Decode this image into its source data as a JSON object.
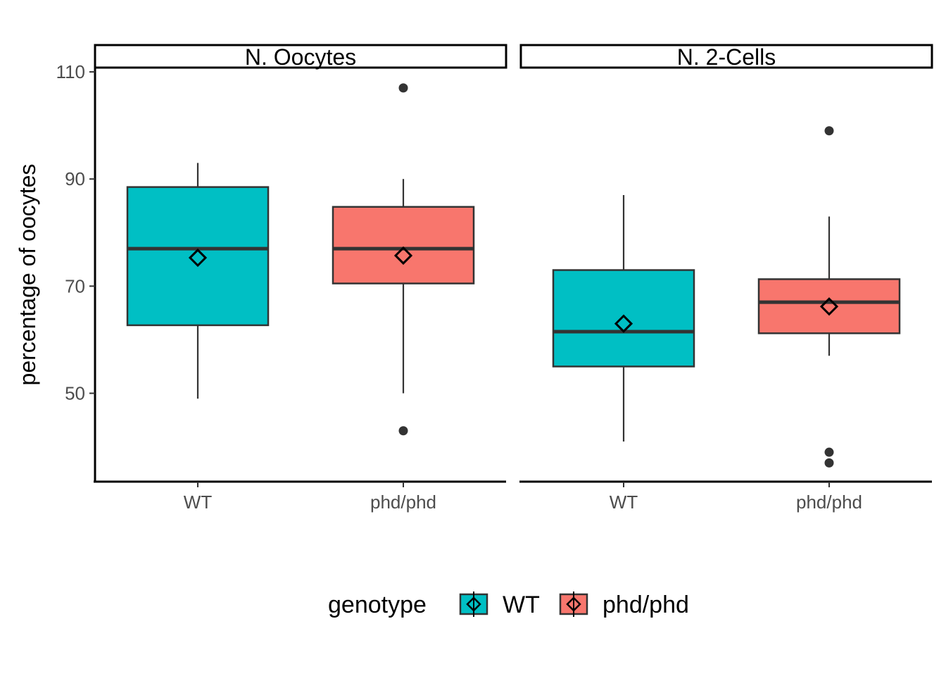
{
  "chart_data": {
    "type": "boxplot",
    "ylabel": "percentage of oocytes",
    "ylim": [
      33.5,
      110.8
    ],
    "yticks": [
      50,
      70,
      90,
      110
    ],
    "categories": [
      "WT",
      "phd/phd"
    ],
    "legend": {
      "title": "genotype",
      "position": "bottom",
      "entries": [
        {
          "label": "WT",
          "color": "#00BFC4"
        },
        {
          "label": "phd/phd",
          "color": "#F8766D"
        }
      ]
    },
    "panels": [
      {
        "title": "N. Oocytes",
        "boxes": [
          {
            "category": "WT",
            "min": 49,
            "q1": 62.7,
            "median": 77,
            "q3": 88.5,
            "max": 93,
            "mean": 75.3,
            "outliers": []
          },
          {
            "category": "phd/phd",
            "min": 50,
            "q1": 70.5,
            "median": 77,
            "q3": 84.8,
            "max": 90,
            "mean": 75.7,
            "outliers": [
              107,
              43
            ]
          }
        ]
      },
      {
        "title": "N. 2-Cells",
        "boxes": [
          {
            "category": "WT",
            "min": 41,
            "q1": 55,
            "median": 61.5,
            "q3": 73,
            "max": 87,
            "mean": 63,
            "outliers": []
          },
          {
            "category": "phd/phd",
            "min": 57,
            "q1": 61.2,
            "median": 67,
            "q3": 71.3,
            "max": 83,
            "mean": 66.2,
            "outliers": [
              99,
              39,
              37
            ]
          }
        ]
      }
    ],
    "grid": false
  }
}
